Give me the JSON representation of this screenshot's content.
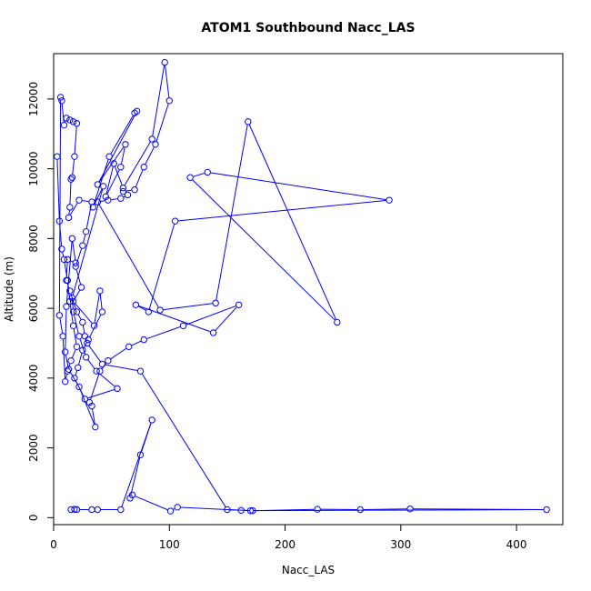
{
  "chart_data": {
    "type": "line",
    "title": "ATOM1 Southbound Nacc_LAS",
    "xlabel": "Nacc_LAS",
    "ylabel": "Altitude (m)",
    "xlim": [
      0,
      440
    ],
    "ylim": [
      -200,
      13300
    ],
    "xticks": [
      0,
      100,
      200,
      300,
      400
    ],
    "yticks": [
      0,
      2000,
      4000,
      6000,
      8000,
      10000,
      12000
    ],
    "color": "#0000ff",
    "marker": "open-circle",
    "series": [
      {
        "x": [
          3,
          5,
          7,
          9,
          12,
          14,
          17,
          20,
          15,
          12,
          10,
          8,
          5,
          6,
          7,
          9,
          11,
          14,
          17,
          20,
          18,
          16,
          15,
          14,
          13,
          22,
          33,
          28,
          25,
          19,
          24,
          17,
          35,
          40,
          42,
          30,
          25,
          21,
          18,
          27,
          55,
          37,
          28,
          22,
          17,
          16,
          43,
          34,
          48,
          70,
          72,
          38,
          62,
          58,
          45,
          52,
          60,
          85,
          96,
          100,
          88,
          78,
          70,
          60,
          64,
          58,
          47,
          38,
          92,
          140,
          168,
          245,
          118,
          133,
          290,
          105,
          82,
          71,
          138,
          160,
          112,
          78,
          65,
          47,
          40,
          31,
          33,
          36,
          22,
          13,
          10,
          11,
          16,
          19,
          12,
          11,
          14,
          20,
          25,
          27,
          29,
          42,
          75,
          150,
          172,
          228,
          265,
          308,
          426,
          170,
          162,
          107,
          101,
          68,
          66,
          75,
          85,
          58,
          38,
          33,
          20,
          18,
          15
        ],
        "y": [
          10350,
          8500,
          7700,
          7400,
          6800,
          6200,
          5500,
          4900,
          4500,
          4200,
          3900,
          5200,
          5800,
          12050,
          11950,
          11250,
          11450,
          11400,
          11350,
          11300,
          10350,
          9750,
          9700,
          8900,
          8600,
          9100,
          9050,
          8200,
          7800,
          7200,
          6600,
          6200,
          5500,
          6500,
          5900,
          5100,
          4800,
          4300,
          4000,
          3400,
          3700,
          4200,
          4600,
          5200,
          5900,
          6300,
          9500,
          8900,
          10350,
          11600,
          11650,
          9550,
          10700,
          10050,
          9200,
          10150,
          9450,
          10850,
          13050,
          11950,
          10700,
          10050,
          9400,
          9350,
          9250,
          9150,
          9100,
          9050,
          5950,
          6150,
          11350,
          5600,
          9750,
          9900,
          9100,
          8500,
          5900,
          6100,
          5300,
          6100,
          5500,
          5100,
          4900,
          4500,
          4200,
          3300,
          3200,
          2600,
          3750,
          4250,
          4750,
          6050,
          8000,
          7300,
          7400,
          6800,
          6500,
          5900,
          5600,
          5200,
          5000,
          4400,
          4200,
          230,
          200,
          240,
          230,
          250,
          230,
          200,
          210,
          300,
          190,
          650,
          560,
          1800,
          2800,
          230,
          230,
          230,
          230,
          240,
          230
        ]
      }
    ]
  }
}
